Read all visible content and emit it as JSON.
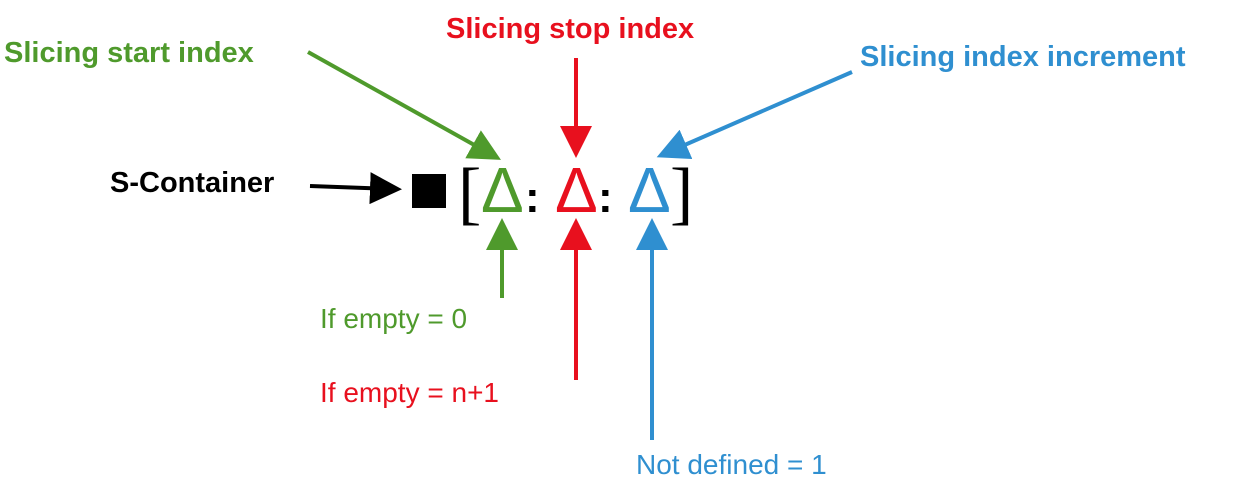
{
  "labels": {
    "start_title": "Slicing start index",
    "stop_title": "Slicing stop index",
    "step_title": "Slicing index increment",
    "container": "S-Container",
    "start_default": "If empty = 0",
    "stop_default": "If empty = n+1",
    "step_default": "Not defined = 1"
  },
  "expression": {
    "open_bracket": "[",
    "close_bracket": "]",
    "start_symbol": "Δ",
    "stop_symbol": "Δ",
    "step_symbol": "Δ",
    "separator_1": ":",
    "separator_2": ":"
  },
  "colors": {
    "start": "#4f9a2c",
    "stop": "#e8101e",
    "step": "#2f8fd0",
    "container": "#000000"
  }
}
